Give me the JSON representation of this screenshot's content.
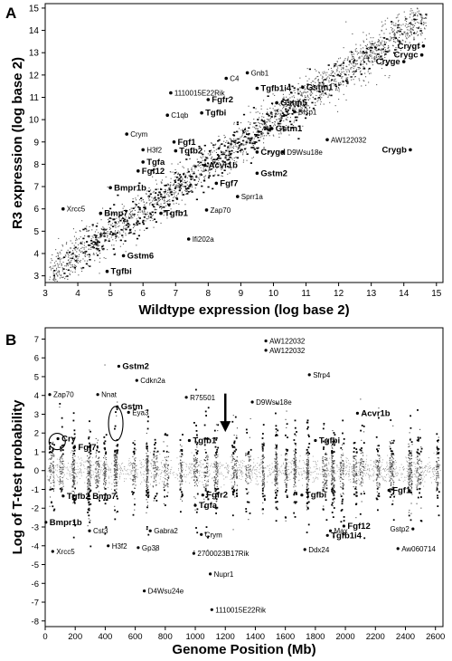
{
  "panels": [
    {
      "letter": "A"
    },
    {
      "letter": "B"
    }
  ],
  "chart_data": [
    {
      "type": "scatter",
      "panel": "A",
      "xlabel": "Wildtype expression (log base 2)",
      "ylabel": "R3 expression (log base 2)",
      "xlim": [
        3,
        15.2
      ],
      "ylim": [
        2.7,
        15.2
      ],
      "xticks": [
        3,
        4,
        5,
        6,
        7,
        8,
        9,
        10,
        11,
        12,
        13,
        14,
        15
      ],
      "yticks": [
        3,
        4,
        5,
        6,
        7,
        8,
        9,
        10,
        11,
        12,
        13,
        14,
        15
      ],
      "grid": false,
      "labeled_points": [
        {
          "label": "Crygf",
          "x": 14.6,
          "y": 13.3,
          "bold": true
        },
        {
          "label": "Crygc",
          "x": 14.55,
          "y": 12.9,
          "bold": true
        },
        {
          "label": "Cryge",
          "x": 14.0,
          "y": 12.6,
          "bold": true
        },
        {
          "label": "Gnb1",
          "x": 9.2,
          "y": 12.1,
          "bold": false
        },
        {
          "label": "C4",
          "x": 8.55,
          "y": 11.85,
          "bold": false
        },
        {
          "label": "Tgfb1i4",
          "x": 9.5,
          "y": 11.4,
          "bold": true
        },
        {
          "label": "Gstm1",
          "x": 10.9,
          "y": 11.45,
          "bold": true
        },
        {
          "label": "1110015E22Rik",
          "x": 6.85,
          "y": 11.2,
          "bold": false
        },
        {
          "label": "Fgfr2",
          "x": 8.0,
          "y": 10.9,
          "bold": true
        },
        {
          "label": "Gstm5",
          "x": 10.1,
          "y": 10.75,
          "bold": true
        },
        {
          "label": "Bfsp1",
          "x": 10.65,
          "y": 10.35,
          "bold": false
        },
        {
          "label": "Tgfbi",
          "x": 7.8,
          "y": 10.3,
          "bold": true
        },
        {
          "label": "C1qb",
          "x": 6.75,
          "y": 10.2,
          "bold": false
        },
        {
          "label": "Gstm1",
          "x": 9.95,
          "y": 9.6,
          "bold": true
        },
        {
          "label": "Crym",
          "x": 5.5,
          "y": 9.35,
          "bold": false
        },
        {
          "label": "Fgf1",
          "x": 6.95,
          "y": 9.0,
          "bold": true
        },
        {
          "label": "AW122032",
          "x": 11.65,
          "y": 9.1,
          "bold": false
        },
        {
          "label": "H3f2",
          "x": 6.0,
          "y": 8.65,
          "bold": false
        },
        {
          "label": "Tgfb2",
          "x": 7.0,
          "y": 8.6,
          "bold": true
        },
        {
          "label": "Crygd",
          "x": 9.5,
          "y": 8.55,
          "bold": true
        },
        {
          "label": "D9Wsu18e",
          "x": 10.3,
          "y": 8.55,
          "bold": false
        },
        {
          "label": "Crygb",
          "x": 14.2,
          "y": 8.65,
          "bold": true
        },
        {
          "label": "Tgfa",
          "x": 6.0,
          "y": 8.1,
          "bold": true
        },
        {
          "label": "Fgf12",
          "x": 5.85,
          "y": 7.7,
          "bold": true
        },
        {
          "label": "Acvr1b",
          "x": 7.9,
          "y": 7.95,
          "bold": true
        },
        {
          "label": "Gstm2",
          "x": 9.5,
          "y": 7.6,
          "bold": true
        },
        {
          "label": "Bmpr1b",
          "x": 5.0,
          "y": 6.95,
          "bold": true
        },
        {
          "label": "Fgf7",
          "x": 8.25,
          "y": 7.15,
          "bold": true
        },
        {
          "label": "Sprr1a",
          "x": 8.9,
          "y": 6.55,
          "bold": false
        },
        {
          "label": "Xrcc5",
          "x": 3.55,
          "y": 6.0,
          "bold": false
        },
        {
          "label": "Zap70",
          "x": 7.95,
          "y": 5.95,
          "bold": false
        },
        {
          "label": "Bmp7",
          "x": 4.7,
          "y": 5.8,
          "bold": true
        },
        {
          "label": "Tgfb1",
          "x": 6.55,
          "y": 5.8,
          "bold": true
        },
        {
          "label": "Ifi202a",
          "x": 7.4,
          "y": 4.65,
          "bold": false
        },
        {
          "label": "Gstm6",
          "x": 5.4,
          "y": 3.9,
          "bold": true
        },
        {
          "label": "Tgfbi",
          "x": 4.9,
          "y": 3.2,
          "bold": true
        }
      ]
    },
    {
      "type": "scatter",
      "panel": "B",
      "xlabel": "Genome Position (Mb)",
      "ylabel": "Log of T-test probability",
      "xlim": [
        0,
        2650
      ],
      "ylim": [
        -8.3,
        7.6
      ],
      "xticks": [
        0,
        200,
        400,
        600,
        800,
        1000,
        1200,
        1400,
        1600,
        1800,
        2000,
        2200,
        2400,
        2600
      ],
      "yticks": [
        -8,
        -7,
        -6,
        -5,
        -4,
        -3,
        -2,
        -1,
        0,
        1,
        2,
        3,
        4,
        5,
        6,
        7
      ],
      "grid": false,
      "arrow_at_x": 1200,
      "circled_regions": [
        "Cry",
        "Gstm"
      ],
      "labeled_points": [
        {
          "label": "AW122032",
          "x": 1470,
          "y": 6.9,
          "bold": false
        },
        {
          "label": "AW122032",
          "x": 1470,
          "y": 6.4,
          "bold": false
        },
        {
          "label": "Gstm2",
          "x": 490,
          "y": 5.55,
          "bold": true
        },
        {
          "label": "Sfrp4",
          "x": 1760,
          "y": 5.1,
          "bold": false
        },
        {
          "label": "Cdkn2a",
          "x": 610,
          "y": 4.8,
          "bold": false
        },
        {
          "label": "Zap70",
          "x": 30,
          "y": 4.05,
          "bold": false
        },
        {
          "label": "Nnat",
          "x": 350,
          "y": 4.05,
          "bold": false
        },
        {
          "label": "R75501",
          "x": 940,
          "y": 3.9,
          "bold": false
        },
        {
          "label": "D9Wsu18e",
          "x": 1380,
          "y": 3.65,
          "bold": false
        },
        {
          "label": "Gstm",
          "x": 480,
          "y": 3.4,
          "bold": true
        },
        {
          "label": "Eya3",
          "x": 555,
          "y": 3.1,
          "bold": false
        },
        {
          "label": "Acvr1b",
          "x": 2080,
          "y": 3.05,
          "bold": true
        },
        {
          "label": "Cry",
          "x": 85,
          "y": 1.7,
          "bold": true
        },
        {
          "label": "Fgf7",
          "x": 195,
          "y": 1.25,
          "bold": true
        },
        {
          "label": "Tgfb1",
          "x": 960,
          "y": 1.6,
          "bold": true
        },
        {
          "label": "Tgfbi",
          "x": 1800,
          "y": 1.6,
          "bold": true
        },
        {
          "label": "Tgfb2",
          "x": 120,
          "y": -1.35,
          "bold": true
        },
        {
          "label": "Bmp7",
          "x": 290,
          "y": -1.35,
          "bold": true
        },
        {
          "label": "Fgfr2",
          "x": 1050,
          "y": -1.3,
          "bold": true
        },
        {
          "label": "Tgfbi",
          "x": 1710,
          "y": -1.3,
          "bold": true
        },
        {
          "label": "Fgf1",
          "x": 2290,
          "y": -1.05,
          "bold": true
        },
        {
          "label": "Tgfa",
          "x": 1000,
          "y": -1.85,
          "bold": true
        },
        {
          "label": "Bmpr1b",
          "x": 5,
          "y": -2.75,
          "bold": true
        },
        {
          "label": "Fgf12",
          "x": 1990,
          "y": -2.95,
          "bold": true
        },
        {
          "label": "Max",
          "x": 1900,
          "y": -3.2,
          "bold": false
        },
        {
          "label": "Cst3",
          "x": 295,
          "y": -3.2,
          "bold": false
        },
        {
          "label": "Gabra2",
          "x": 700,
          "y": -3.2,
          "bold": false
        },
        {
          "label": "Crym",
          "x": 1040,
          "y": -3.4,
          "bold": false
        },
        {
          "label": "Gstp2",
          "x": 2450,
          "y": -3.1,
          "bold": false
        },
        {
          "label": "Tgfb1i4",
          "x": 1880,
          "y": -3.45,
          "bold": true
        },
        {
          "label": "Xrcc5",
          "x": 50,
          "y": -4.3,
          "bold": false
        },
        {
          "label": "H3f2",
          "x": 420,
          "y": -4.0,
          "bold": false
        },
        {
          "label": "Gp38",
          "x": 620,
          "y": -4.1,
          "bold": false
        },
        {
          "label": "2700023B17Rik",
          "x": 990,
          "y": -4.4,
          "bold": false
        },
        {
          "label": "Ddx24",
          "x": 1730,
          "y": -4.2,
          "bold": false
        },
        {
          "label": "Aw060714",
          "x": 2350,
          "y": -4.15,
          "bold": false
        },
        {
          "label": "Nupr1",
          "x": 1100,
          "y": -5.5,
          "bold": false
        },
        {
          "label": "D4Wsu24e",
          "x": 660,
          "y": -6.4,
          "bold": false
        },
        {
          "label": "1110015E22Rik",
          "x": 1110,
          "y": -7.4,
          "bold": false
        }
      ]
    }
  ]
}
